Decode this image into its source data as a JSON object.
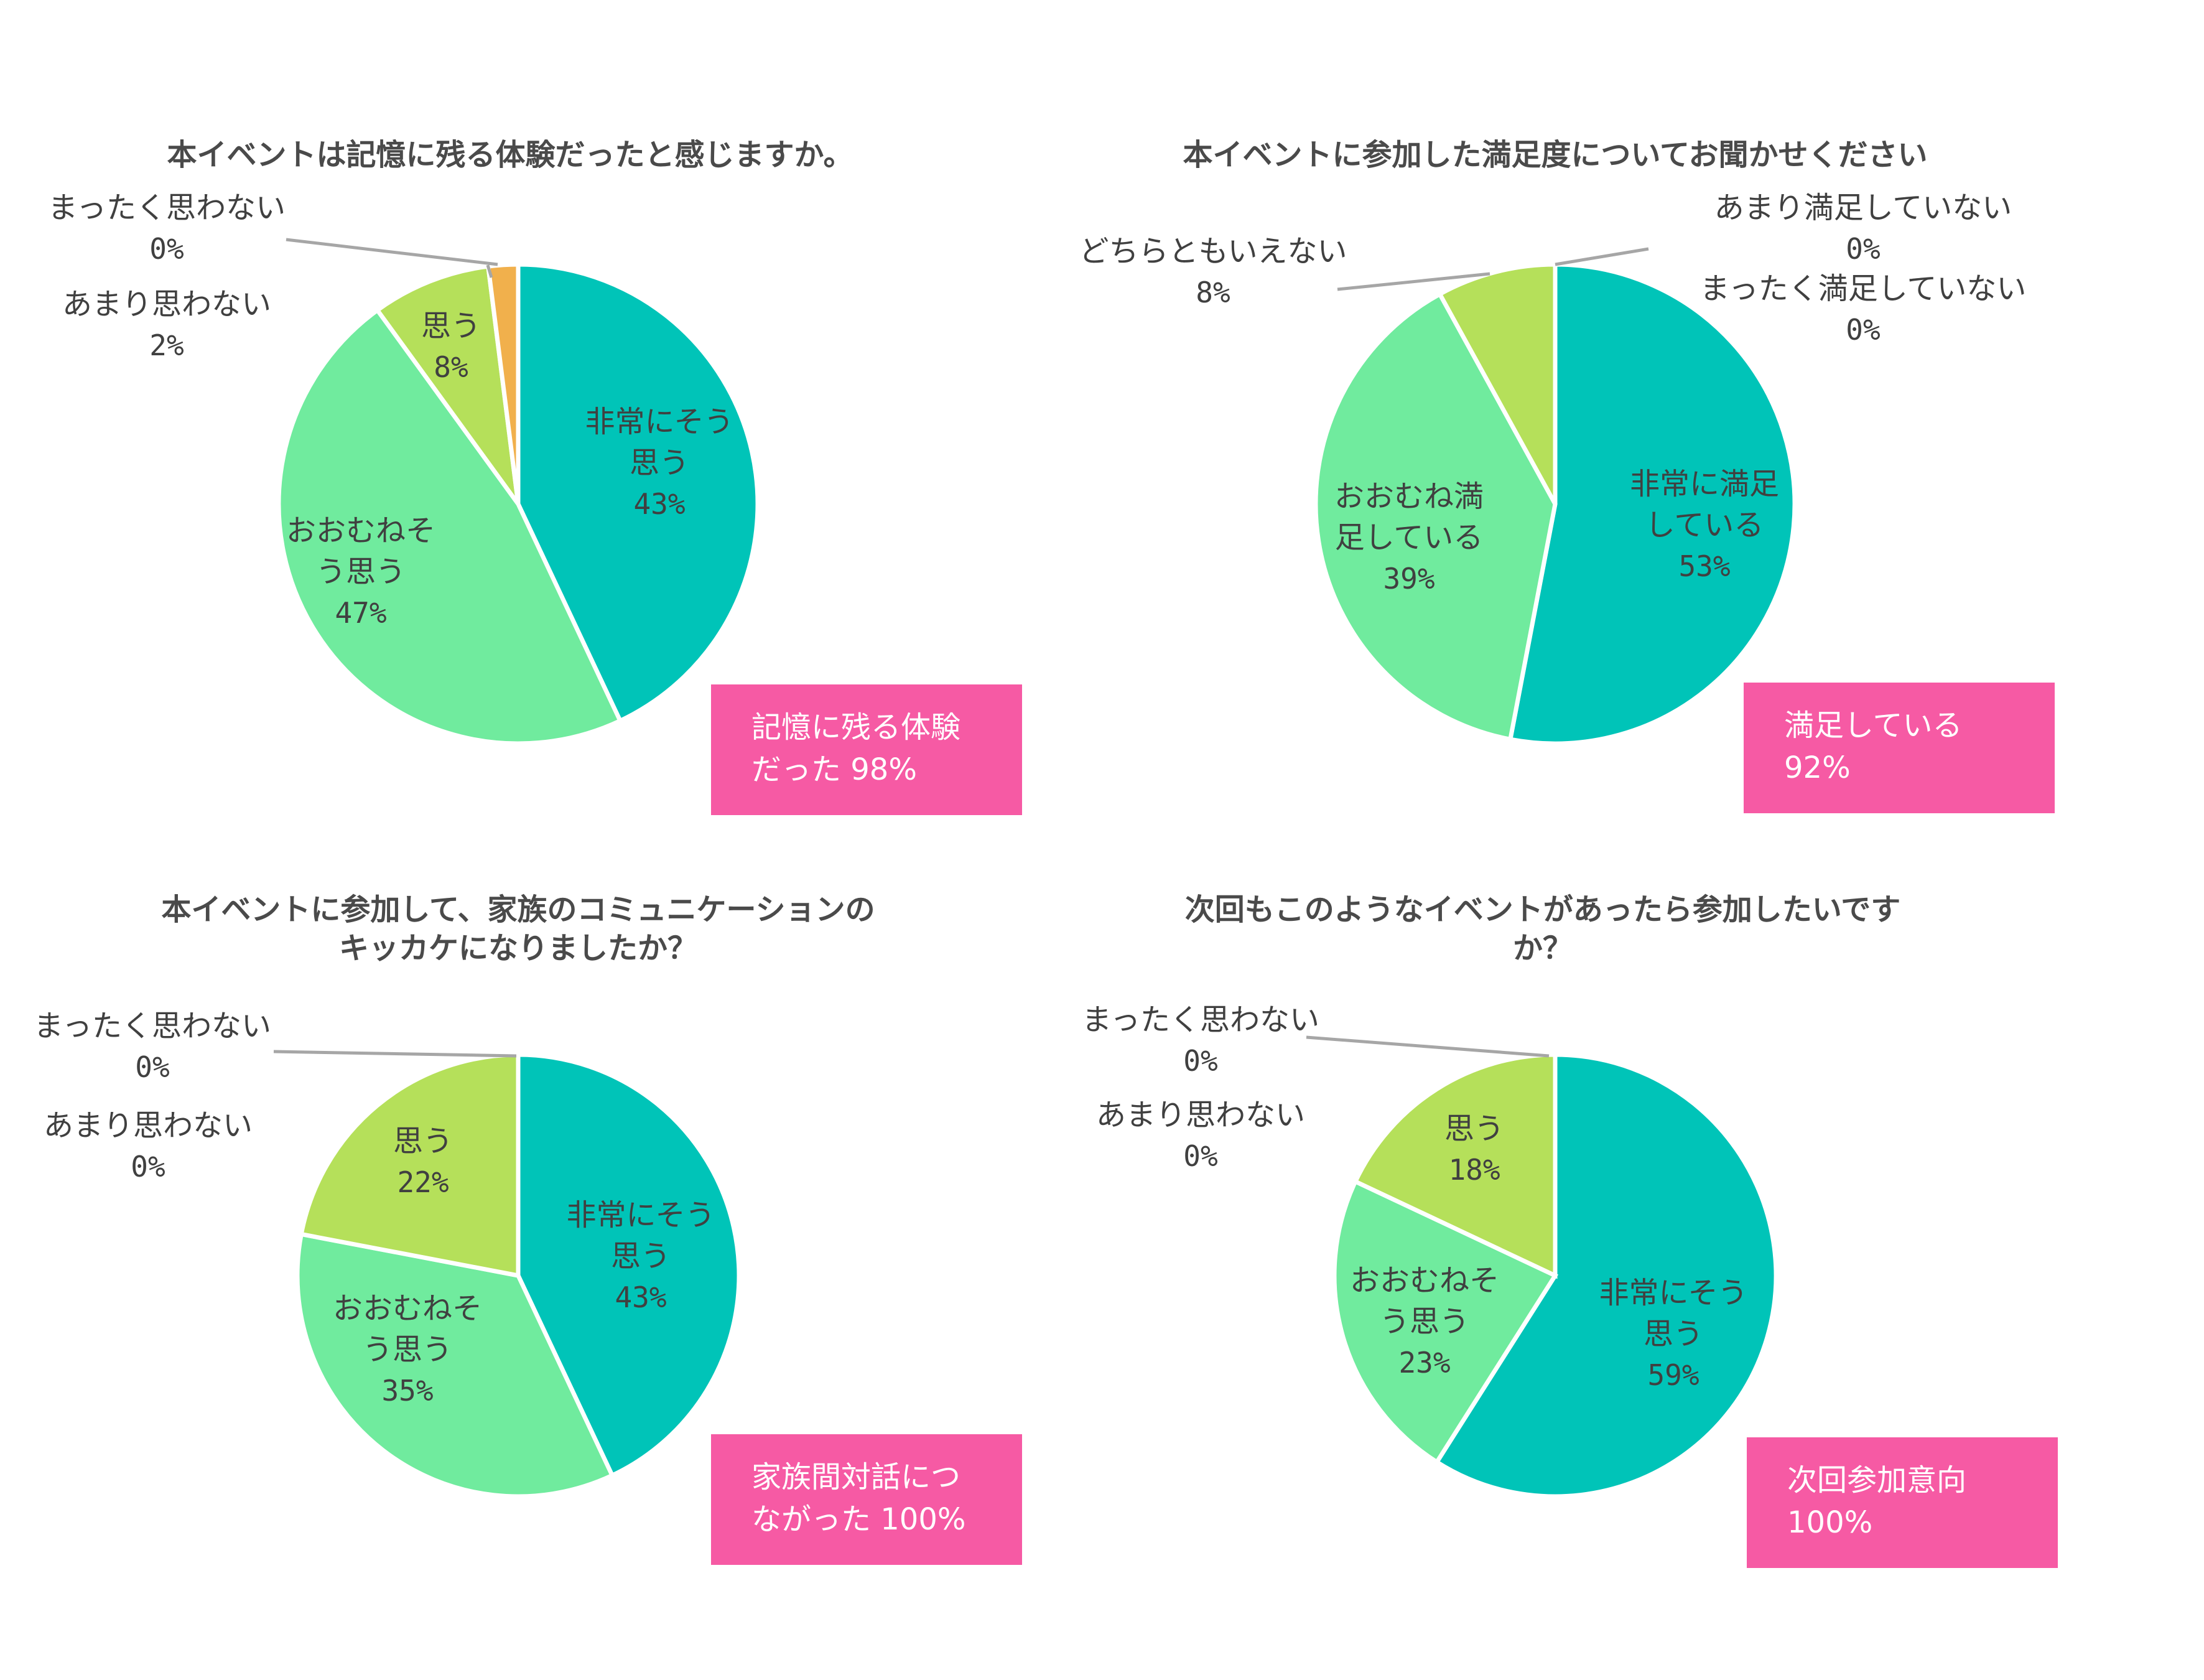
{
  "colors": {
    "slice1": "#00c4b8",
    "slice2": "#70eb9e",
    "slice3": "#b5e05a",
    "slice4": "#f1b04c",
    "slice5": "#a6a6a6",
    "badge": "#f65aa4",
    "border": "#ffffff"
  },
  "chart_data": [
    {
      "type": "pie",
      "title": "本イベントは記憶に残る体験だったと感じますか。",
      "slices": [
        {
          "label": "非常にそう思う",
          "lines": [
            "非常にそう",
            "思う"
          ],
          "value": 43,
          "pct": "43%"
        },
        {
          "label": "おおむねそう思う",
          "lines": [
            "おおむねそ",
            "う思う"
          ],
          "value": 47,
          "pct": "47%"
        },
        {
          "label": "思う",
          "lines": [
            "思う"
          ],
          "value": 8,
          "pct": "8%"
        },
        {
          "label": "あまり思わない",
          "lines": [
            "あまり思わない"
          ],
          "value": 2,
          "pct": "2%"
        },
        {
          "label": "まったく思わない",
          "lines": [
            "まったく思わない"
          ],
          "value": 0,
          "pct": "0%"
        }
      ],
      "badge": [
        "記憶に残る体験",
        "だった 98%"
      ]
    },
    {
      "type": "pie",
      "title": "本イベントに参加した満足度についてお聞かせください",
      "slices": [
        {
          "label": "非常に満足している",
          "lines": [
            "非常に満足",
            "している"
          ],
          "value": 53,
          "pct": "53%"
        },
        {
          "label": "おおむね満足している",
          "lines": [
            "おおむね満",
            "足している"
          ],
          "value": 39,
          "pct": "39%"
        },
        {
          "label": "どちらともいえない",
          "lines": [
            "どちらともいえない"
          ],
          "value": 8,
          "pct": "8%"
        },
        {
          "label": "あまり満足していない",
          "lines": [
            "あまり満足していない"
          ],
          "value": 0,
          "pct": "0%"
        },
        {
          "label": "まったく満足していない",
          "lines": [
            "まったく満足していない"
          ],
          "value": 0,
          "pct": "0%"
        }
      ],
      "badge": [
        "満足している",
        "92%"
      ]
    },
    {
      "type": "pie",
      "title": "本イベントに参加して、家族のコミュニケーションのキッカケになりましたか？",
      "title_lines": [
        "本イベントに参加して、家族のコミュニケーションの",
        "キッカケになりましたか？"
      ],
      "slices": [
        {
          "label": "非常にそう思う",
          "lines": [
            "非常にそう",
            "思う"
          ],
          "value": 43,
          "pct": "43%"
        },
        {
          "label": "おおむねそう思う",
          "lines": [
            "おおむねそ",
            "う思う"
          ],
          "value": 35,
          "pct": "35%"
        },
        {
          "label": "思う",
          "lines": [
            "思う"
          ],
          "value": 22,
          "pct": "22%"
        },
        {
          "label": "あまり思わない",
          "lines": [
            "あまり思わない"
          ],
          "value": 0,
          "pct": "0%"
        },
        {
          "label": "まったく思わない",
          "lines": [
            "まったく思わない"
          ],
          "value": 0,
          "pct": "0%"
        }
      ],
      "badge": [
        "家族間対話につ",
        "ながった 100%"
      ]
    },
    {
      "type": "pie",
      "title": "次回もこのようなイベントがあったら参加したいですか？",
      "title_lines": [
        "次回もこのようなイベントがあったら参加したいです",
        "か？"
      ],
      "slices": [
        {
          "label": "非常にそう思う",
          "lines": [
            "非常にそう",
            "思う"
          ],
          "value": 59,
          "pct": "59%"
        },
        {
          "label": "おおむねそう思う",
          "lines": [
            "おおむねそ",
            "う思う"
          ],
          "value": 23,
          "pct": "23%"
        },
        {
          "label": "思う",
          "lines": [
            "思う"
          ],
          "value": 18,
          "pct": "18%"
        },
        {
          "label": "あまり思わない",
          "lines": [
            "あまり思わない"
          ],
          "value": 0,
          "pct": "0%"
        },
        {
          "label": "まったく思わない",
          "lines": [
            "まったく思わない"
          ],
          "value": 0,
          "pct": "0%"
        }
      ],
      "badge": [
        "次回参加意向",
        "100%"
      ]
    }
  ]
}
